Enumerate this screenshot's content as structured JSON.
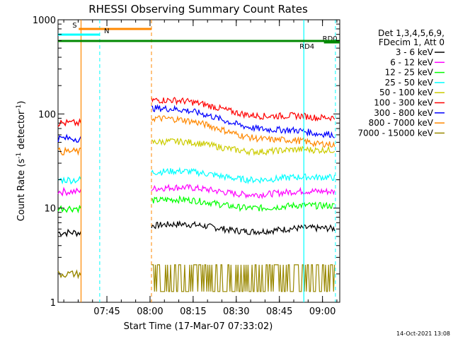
{
  "chart_data": {
    "type": "line",
    "title": "RHESSI Observing Summary Count Rates",
    "xlabel": "Start Time (17-Mar-07 07:33:02)",
    "ylabel_main": "Count Rate (s",
    "ylabel_sup1": "-1",
    "ylabel_mid": " detector",
    "ylabel_sup2": "-1",
    "ylabel_end": ")",
    "yscale": "log",
    "ylim": [
      1,
      1000
    ],
    "xlim_minutes": [
      -5,
      93
    ],
    "y_ticks": [
      {
        "value": 1,
        "label": "1"
      },
      {
        "value": 10,
        "label": "10"
      },
      {
        "value": 100,
        "label": "100"
      },
      {
        "value": 1000,
        "label": "1000"
      }
    ],
    "x_ticks": [
      {
        "value": 12,
        "label": "07:45"
      },
      {
        "value": 27,
        "label": "08:00"
      },
      {
        "value": 42,
        "label": "08:15"
      },
      {
        "value": 57,
        "label": "08:30"
      },
      {
        "value": 72,
        "label": "08:45"
      },
      {
        "value": 87,
        "label": "09:00"
      }
    ],
    "legend": {
      "header": [
        "Det 1,3,4,5,6,9,",
        "FDecim 1, Att 0"
      ],
      "position": "right"
    },
    "series": [
      {
        "name": "3 - 6 keV",
        "color": "#000000",
        "level": 5.5,
        "level_day": 6.5,
        "dip": 0.9
      },
      {
        "name": "6 - 12 keV",
        "color": "#ff00ff",
        "level": 15,
        "level_day": 16,
        "dip": 0.9
      },
      {
        "name": "12 - 25 keV",
        "color": "#00ff00",
        "level": 10,
        "level_day": 12,
        "dip": 0.85
      },
      {
        "name": "25 - 50 keV",
        "color": "#00ffff",
        "level": 20,
        "level_day": 24,
        "dip": 0.85
      },
      {
        "name": "50 - 100 keV",
        "color": "#cccc00",
        "level": 0,
        "level_day": 50,
        "dip": 0.8
      },
      {
        "name": "100 - 300 keV",
        "color": "#ff0000",
        "level": 80,
        "level_day": 140,
        "dip": 0.65
      },
      {
        "name": "300 - 800 keV",
        "color": "#0000ff",
        "level": 55,
        "level_day": 115,
        "dip": 0.55
      },
      {
        "name": "800 - 7000 keV",
        "color": "#ff8800",
        "level": 40,
        "level_day": 90,
        "dip": 0.55
      },
      {
        "name": "7000 - 15000 keV",
        "color": "#998800",
        "level": 2,
        "level_day": 2,
        "dip": 1
      }
    ],
    "flags": [
      {
        "label": "S",
        "color": "#ff8800",
        "start_min": 2.2,
        "end_min": 27.5,
        "label_at_min": 0
      },
      {
        "label": "N",
        "color": "#00ffff",
        "start_min": -5,
        "end_min": 9.5,
        "label_at_min": 11
      },
      {
        "label": "RD0",
        "color": "#008800",
        "start_min": 87.5,
        "end_min": 93,
        "label_at_min": 87
      },
      {
        "label": "RD4",
        "color": "#008800",
        "start_min": -5,
        "end_min": 93,
        "label_at_min": 79
      }
    ],
    "timestamp": "14-Oct-2021 13:08"
  }
}
